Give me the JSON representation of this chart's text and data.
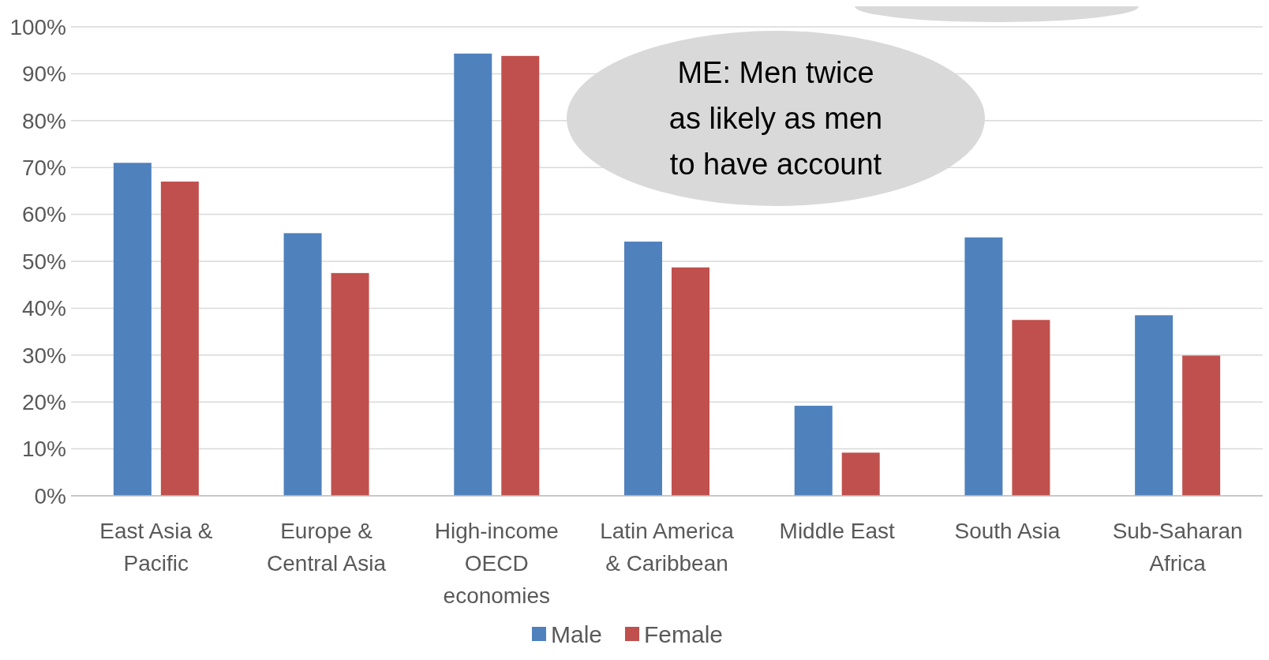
{
  "chart_data": {
    "type": "bar",
    "categories": [
      "East Asia & Pacific",
      "Europe & Central Asia",
      "High-income OECD economies",
      "Latin America & Caribbean",
      "Middle East",
      "South Asia",
      "Sub-Saharan Africa"
    ],
    "series": [
      {
        "name": "Male",
        "color": "#4f81bd",
        "values": [
          71,
          56,
          94.3,
          54.2,
          19.2,
          55.1,
          38.5
        ]
      },
      {
        "name": "Female",
        "color": "#c0504d",
        "values": [
          67,
          47.5,
          93.8,
          48.7,
          9.2,
          37.5,
          29.9
        ]
      }
    ],
    "ylim": [
      0,
      100
    ],
    "yticks": [
      {
        "value": 0,
        "label": "0%"
      },
      {
        "value": 10,
        "label": "10%"
      },
      {
        "value": 20,
        "label": "20%"
      },
      {
        "value": 30,
        "label": "30%"
      },
      {
        "value": 40,
        "label": "40%"
      },
      {
        "value": 50,
        "label": "50%"
      },
      {
        "value": 60,
        "label": "60%"
      },
      {
        "value": 70,
        "label": "70%"
      },
      {
        "value": 80,
        "label": "80%"
      },
      {
        "value": 90,
        "label": "90%"
      },
      {
        "value": 100,
        "label": "100%"
      }
    ],
    "grid": "y",
    "legend": "bottom",
    "annotations": [
      "ME: Men twice\nas likely as men\nto have account"
    ]
  }
}
